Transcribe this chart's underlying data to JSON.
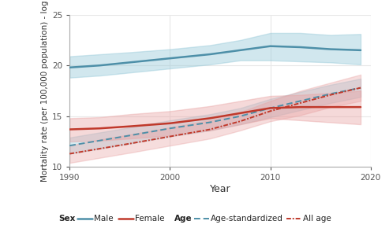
{
  "years": [
    1990,
    1993,
    1996,
    2000,
    2004,
    2007,
    2010,
    2013,
    2016,
    2019
  ],
  "male_mean": [
    19.8,
    20.0,
    20.3,
    20.7,
    21.1,
    21.5,
    21.9,
    21.8,
    21.6,
    21.5
  ],
  "male_lo": [
    18.8,
    19.0,
    19.3,
    19.7,
    20.1,
    20.5,
    20.5,
    20.4,
    20.3,
    20.1
  ],
  "male_hi": [
    20.9,
    21.1,
    21.3,
    21.6,
    22.0,
    22.5,
    23.2,
    23.2,
    23.0,
    23.1
  ],
  "female_mean": [
    13.7,
    13.8,
    14.0,
    14.3,
    14.8,
    15.3,
    15.8,
    15.9,
    15.9,
    15.9
  ],
  "female_lo": [
    12.5,
    12.6,
    12.8,
    13.1,
    13.6,
    14.2,
    14.8,
    14.6,
    14.4,
    14.2
  ],
  "female_hi": [
    14.8,
    14.9,
    15.2,
    15.5,
    16.0,
    16.5,
    17.0,
    17.1,
    17.3,
    17.5
  ],
  "age_std_mean": [
    12.1,
    12.6,
    13.1,
    13.8,
    14.4,
    15.0,
    15.8,
    16.5,
    17.2,
    17.8
  ],
  "age_std_lo": [
    11.3,
    11.8,
    12.3,
    13.0,
    13.6,
    14.2,
    14.9,
    15.6,
    16.3,
    16.9
  ],
  "age_std_hi": [
    12.9,
    13.4,
    13.9,
    14.6,
    15.2,
    15.8,
    16.7,
    17.4,
    18.1,
    18.7
  ],
  "all_age_mean": [
    11.3,
    11.8,
    12.3,
    13.0,
    13.7,
    14.5,
    15.5,
    16.3,
    17.1,
    17.8
  ],
  "all_age_lo": [
    10.4,
    10.9,
    11.4,
    12.1,
    12.8,
    13.6,
    14.5,
    15.1,
    15.9,
    16.5
  ],
  "all_age_hi": [
    12.1,
    12.7,
    13.2,
    13.9,
    14.6,
    15.4,
    16.5,
    17.5,
    18.3,
    19.1
  ],
  "male_color": "#4d8fa8",
  "female_color": "#c0392b",
  "age_std_color": "#4d8fa8",
  "all_age_color": "#c0392b",
  "male_fill": "#8ec5d6",
  "female_fill": "#e8a0a0",
  "age_std_fill": "#8ec5d6",
  "all_age_fill": "#e8a0a0",
  "ylim": [
    10,
    25
  ],
  "yticks": [
    10,
    15,
    20,
    25
  ],
  "xlim": [
    1990,
    2020
  ],
  "xticks": [
    1990,
    2000,
    2010,
    2020
  ],
  "xlabel": "Year",
  "ylabel": "Mortality rate (per 100,000 population) - log",
  "bg_color": "#ffffff",
  "grid_color": "#e8e8e8",
  "axis_fontsize": 8,
  "tick_fontsize": 7.5
}
